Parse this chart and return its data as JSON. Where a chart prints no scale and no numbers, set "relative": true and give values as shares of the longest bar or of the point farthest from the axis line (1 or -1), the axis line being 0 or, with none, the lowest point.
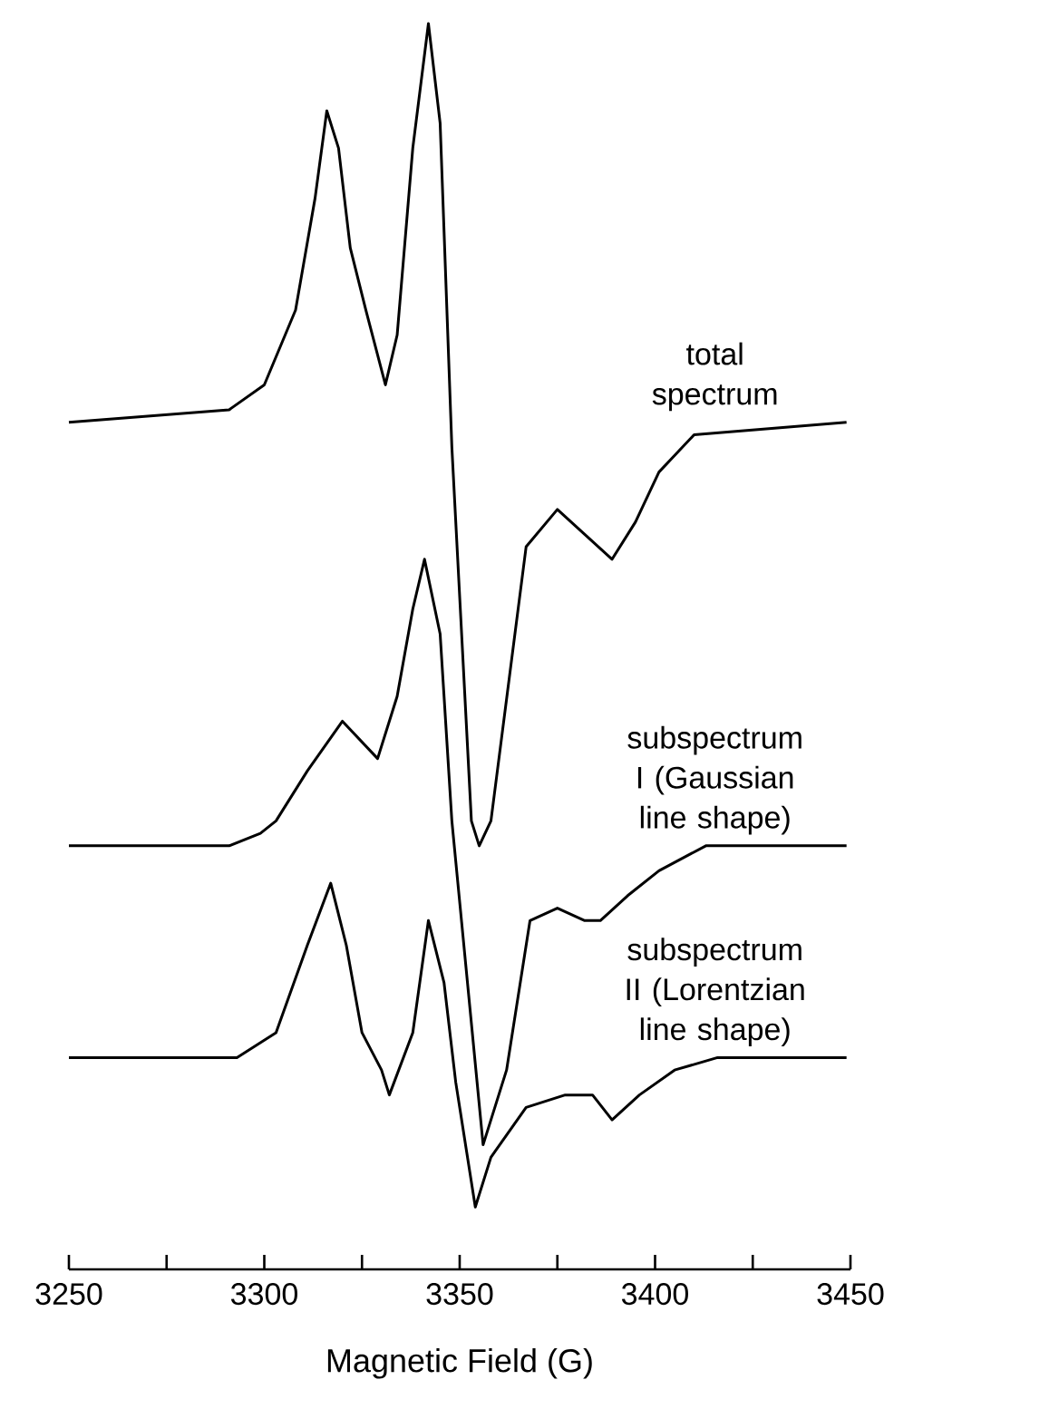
{
  "chart_data": {
    "type": "line",
    "xlabel": "Magnetic Field (G)",
    "relative": true,
    "xlim": [
      3250,
      3450
    ],
    "xticks": [
      3250,
      {
        "value": 3275,
        "label": null
      },
      3300,
      {
        "value": 3325,
        "label": null
      },
      3350,
      {
        "value": 3375,
        "label": null
      },
      3400,
      {
        "value": 3425,
        "label": null
      },
      3450
    ],
    "series": [
      {
        "name": "total spectrum",
        "color": "#000000",
        "x": [
          3250,
          3291,
          3300,
          3308,
          3313,
          3316,
          3319,
          3322,
          3326,
          3331,
          3334,
          3338,
          3342,
          3345,
          3348,
          3353,
          3355,
          3358,
          3367,
          3375,
          3382,
          3389,
          3395,
          3401,
          3410,
          3449
        ],
        "values": [
          0.68,
          0.69,
          0.71,
          0.77,
          0.86,
          0.93,
          0.9,
          0.82,
          0.77,
          0.71,
          0.75,
          0.9,
          1.0,
          0.92,
          0.66,
          0.36,
          0.34,
          0.36,
          0.58,
          0.61,
          0.59,
          0.57,
          0.6,
          0.64,
          0.67,
          0.68
        ]
      },
      {
        "name": "subspectrum I (Gaussian line shape)",
        "color": "#000000",
        "x": [
          3250,
          3291,
          3299,
          3303,
          3311,
          3320,
          3329,
          3334,
          3338,
          3341,
          3345,
          3348,
          3356,
          3362,
          3368,
          3375,
          3382,
          3386,
          3393,
          3401,
          3413,
          3449
        ],
        "values": [
          0.34,
          0.34,
          0.35,
          0.36,
          0.4,
          0.44,
          0.41,
          0.46,
          0.53,
          0.57,
          0.51,
          0.36,
          0.1,
          0.16,
          0.28,
          0.29,
          0.28,
          0.28,
          0.3,
          0.32,
          0.34,
          0.34
        ]
      },
      {
        "name": "subspectrum II (Lorentzian line shape)",
        "color": "#000000",
        "x": [
          3250,
          3293,
          3303,
          3311,
          3317,
          3321,
          3325,
          3330,
          3332,
          3338,
          3342,
          3346,
          3349,
          3354,
          3358,
          3367,
          3377,
          3384,
          3389,
          3396,
          3405,
          3416,
          3449
        ],
        "values": [
          0.17,
          0.17,
          0.19,
          0.26,
          0.31,
          0.26,
          0.19,
          0.16,
          0.14,
          0.19,
          0.28,
          0.23,
          0.15,
          0.05,
          0.09,
          0.13,
          0.14,
          0.14,
          0.12,
          0.14,
          0.16,
          0.17,
          0.17
        ]
      }
    ]
  }
}
